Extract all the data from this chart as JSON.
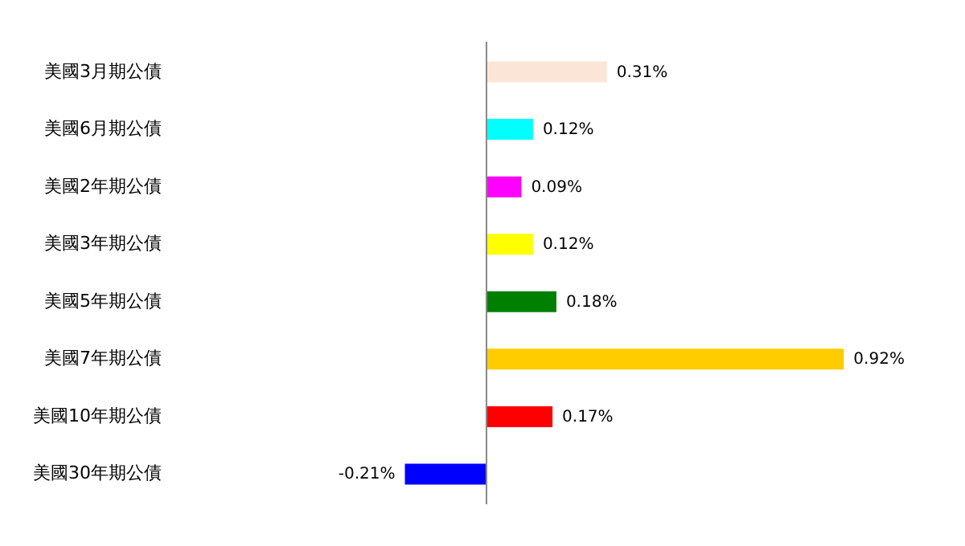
{
  "chart_data": {
    "type": "bar",
    "orientation": "horizontal",
    "categories": [
      "美國3月期公債",
      "美國6月期公債",
      "美國2年期公債",
      "美國3年期公債",
      "美國5年期公債",
      "美國7年期公債",
      "美國10年期公債",
      "美國30年期公債"
    ],
    "values": [
      0.31,
      0.12,
      0.09,
      0.12,
      0.18,
      0.92,
      0.17,
      -0.21
    ],
    "value_labels": [
      "0.31%",
      "0.12%",
      "0.09%",
      "0.12%",
      "0.18%",
      "0.92%",
      "0.17%",
      "-0.21%"
    ],
    "colors": [
      "#fbe5d6",
      "#00ffff",
      "#ff00ff",
      "#ffff00",
      "#008000",
      "#ffcc00",
      "#ff0000",
      "#0000ff"
    ],
    "grid": false,
    "legend": false
  }
}
